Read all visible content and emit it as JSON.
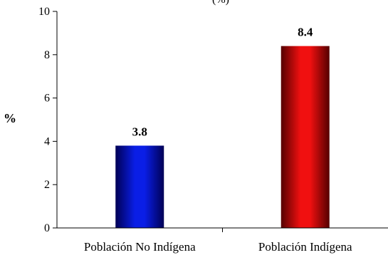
{
  "chart_data": {
    "type": "bar",
    "title": "(%)",
    "xlabel": "",
    "ylabel": "%",
    "ylim": [
      0,
      10
    ],
    "yticks": [
      0,
      2,
      4,
      6,
      8,
      10
    ],
    "grid": false,
    "categories": [
      "Población No Indígena",
      "Población Indígena"
    ],
    "values": [
      3.8,
      8.4
    ],
    "data_labels": [
      "3.8",
      "8.4"
    ],
    "colors": [
      "#0000cc",
      "#cc0000"
    ]
  }
}
